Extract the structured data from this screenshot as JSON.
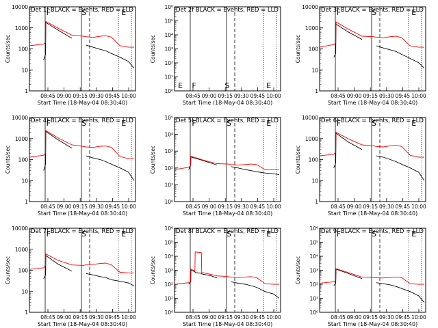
{
  "figure": {
    "ylabel": "Counts/sec",
    "xlabel": "Start Time (18-May-04 08:30:40)",
    "x_ticks": [
      "08:45",
      "09:00",
      "09:15",
      "09:30",
      "09:45",
      "10:00"
    ],
    "markers": {
      "S": "S",
      "E": "E",
      "F": "F"
    },
    "event_color": "#000000",
    "lld_color": "#ff0000"
  },
  "chart_data": [
    {
      "type": "line",
      "title": "Det 1f BLACK = Events, RED = LLD",
      "xlim": [
        "08:30:40",
        "10:10"
      ],
      "y_scale": "log",
      "ylim": [
        1,
        10000
      ],
      "y_ticks": [
        "1",
        "10",
        "100",
        "1000",
        "10000"
      ],
      "x": [
        0.0,
        0.5,
        0.57,
        0.58,
        1.0,
        1.5,
        1.9,
        2.0,
        2.25,
        2.5,
        2.7,
        2.9,
        3.2,
        3.5,
        3.7
      ],
      "series": [
        {
          "name": "Events",
          "values": [
            null,
            30,
            55,
            1800,
            800,
            320,
            null,
            150,
            120,
            95,
            80,
            60,
            40,
            25,
            12
          ]
        },
        {
          "name": "LLD",
          "values": [
            140,
            170,
            200,
            2000,
            1000,
            450,
            400,
            380,
            350,
            400,
            420,
            360,
            140,
            120,
            120
          ]
        }
      ],
      "letters": [
        {
          "text": "F",
          "x": 0.58
        },
        {
          "text": "S",
          "x": 1.85
        },
        {
          "text": "E",
          "x": 3.28
        }
      ]
    },
    {
      "type": "line",
      "title": "Det 2f BLACK = Events, RED = LLD",
      "xlim": [
        "08:30:40",
        "10:10"
      ],
      "y_scale": "log",
      "ylim": [
        1,
        1000000
      ],
      "y_ticks": [
        "10⁰",
        "10¹",
        "10²",
        "10³",
        "10⁴",
        "10⁵",
        "10⁶"
      ],
      "x": [],
      "series": [],
      "letters": [
        {
          "text": "E",
          "x": 0.1
        },
        {
          "text": "F",
          "x": 0.6
        },
        {
          "text": "S",
          "x": 1.78
        },
        {
          "text": "E",
          "x": 3.28
        }
      ]
    },
    {
      "type": "line",
      "title": "Det 3f BLACK = Events, RED = LLD",
      "xlim": [
        "08:30:40",
        "10:10"
      ],
      "y_scale": "log",
      "ylim": [
        1,
        10000
      ],
      "y_ticks": [
        "1",
        "10",
        "100",
        "1000",
        "10000"
      ],
      "x": [
        0.0,
        0.5,
        0.57,
        0.58,
        1.0,
        1.5,
        1.9,
        2.0,
        2.25,
        2.5,
        2.7,
        2.9,
        3.2,
        3.5,
        3.7
      ],
      "series": [
        {
          "name": "Events",
          "values": [
            null,
            40,
            60,
            1500,
            650,
            280,
            null,
            140,
            110,
            90,
            75,
            55,
            35,
            22,
            12
          ]
        },
        {
          "name": "LLD",
          "values": [
            120,
            160,
            190,
            1900,
            900,
            400,
            380,
            360,
            340,
            380,
            400,
            340,
            140,
            120,
            120
          ]
        }
      ],
      "letters": [
        {
          "text": "F",
          "x": 0.58
        },
        {
          "text": "S",
          "x": 1.85
        },
        {
          "text": "E",
          "x": 3.28
        }
      ]
    },
    {
      "type": "line",
      "title": "Det 4f BLACK = Events, RED = LLD",
      "xlim": [
        "08:30:40",
        "10:10"
      ],
      "y_scale": "log",
      "ylim": [
        1,
        10000
      ],
      "y_ticks": [
        "1",
        "10",
        "100",
        "1000",
        "10000"
      ],
      "x": [
        0.0,
        0.5,
        0.57,
        0.58,
        1.0,
        1.5,
        1.9,
        2.0,
        2.25,
        2.5,
        2.7,
        2.9,
        3.2,
        3.5,
        3.7
      ],
      "series": [
        {
          "name": "Events",
          "values": [
            null,
            30,
            60,
            2200,
            900,
            350,
            null,
            150,
            120,
            100,
            80,
            60,
            40,
            25,
            10
          ]
        },
        {
          "name": "LLD",
          "values": [
            130,
            160,
            200,
            2400,
            1100,
            500,
            420,
            400,
            380,
            430,
            440,
            380,
            140,
            110,
            110
          ]
        }
      ],
      "letters": [
        {
          "text": "F",
          "x": 0.58
        },
        {
          "text": "S",
          "x": 1.85
        },
        {
          "text": "E",
          "x": 3.28
        }
      ]
    },
    {
      "type": "line",
      "title": "Det 5f BLACK = Events, RED = LLD",
      "xlim": [
        "08:30:40",
        "10:10"
      ],
      "y_scale": "log",
      "ylim": [
        1,
        100000
      ],
      "y_ticks": [
        "10⁰",
        "10¹",
        "10²",
        "10³",
        "10⁴",
        "10⁵"
      ],
      "x": [
        0.0,
        0.5,
        0.57,
        0.58,
        1.0,
        1.5,
        1.9,
        2.0,
        2.25,
        2.5,
        2.7,
        2.9,
        3.2,
        3.5,
        3.7
      ],
      "series": [
        {
          "name": "Events",
          "values": [
            null,
            80,
            150,
            450,
            280,
            150,
            null,
            120,
            100,
            80,
            70,
            60,
            50,
            45,
            40
          ]
        },
        {
          "name": "LLD",
          "values": [
            80,
            110,
            140,
            500,
            300,
            180,
            170,
            160,
            150,
            160,
            170,
            160,
            80,
            80,
            80
          ]
        }
      ],
      "letters": [
        {
          "text": "F",
          "x": 0.6
        },
        {
          "text": "S",
          "x": 1.85
        },
        {
          "text": "E",
          "x": 3.28
        }
      ]
    },
    {
      "type": "line",
      "title": "Det 6f BLACK = Events, RED = LLD",
      "xlim": [
        "08:30:40",
        "10:10"
      ],
      "y_scale": "log",
      "ylim": [
        1,
        10000
      ],
      "y_ticks": [
        "1",
        "10",
        "100",
        "1000",
        "10000"
      ],
      "x": [
        0.0,
        0.5,
        0.57,
        0.58,
        1.0,
        1.5,
        1.9,
        2.0,
        2.25,
        2.5,
        2.7,
        2.9,
        3.2,
        3.5,
        3.7
      ],
      "series": [
        {
          "name": "Events",
          "values": [
            null,
            40,
            70,
            1800,
            700,
            300,
            null,
            150,
            130,
            100,
            80,
            60,
            40,
            25,
            10
          ]
        },
        {
          "name": "LLD",
          "values": [
            150,
            180,
            220,
            2000,
            1000,
            500,
            450,
            420,
            400,
            450,
            480,
            420,
            160,
            130,
            130
          ]
        }
      ],
      "letters": [
        {
          "text": "F",
          "x": 0.58
        },
        {
          "text": "S",
          "x": 1.85
        },
        {
          "text": "E",
          "x": 3.28
        }
      ]
    },
    {
      "type": "line",
      "title": "Det 7f BLACK = Events, RED = LLD",
      "xlim": [
        "08:30:40",
        "10:10"
      ],
      "y_scale": "log",
      "ylim": [
        1,
        10000
      ],
      "y_ticks": [
        "1",
        "10",
        "100",
        "1000",
        "10000"
      ],
      "x": [
        0.0,
        0.5,
        0.57,
        0.58,
        1.0,
        1.5,
        1.9,
        2.0,
        2.25,
        2.5,
        2.7,
        2.9,
        3.2,
        3.5,
        3.7
      ],
      "series": [
        {
          "name": "Events",
          "values": [
            null,
            40,
            60,
            500,
            200,
            90,
            null,
            70,
            60,
            50,
            45,
            35,
            30,
            25,
            18
          ]
        },
        {
          "name": "LLD",
          "values": [
            110,
            130,
            170,
            600,
            300,
            180,
            170,
            180,
            190,
            210,
            220,
            180,
            80,
            75,
            75
          ]
        }
      ],
      "letters": [
        {
          "text": "F",
          "x": 0.58
        },
        {
          "text": "S",
          "x": 1.85
        },
        {
          "text": "E",
          "x": 3.28
        }
      ]
    },
    {
      "type": "line",
      "title": "Det 8f BLACK = Events, RED = LLD",
      "xlim": [
        "08:30:40",
        "10:10"
      ],
      "y_scale": "log",
      "ylim": [
        1,
        1000000
      ],
      "y_ticks": [
        "10⁰",
        "10¹",
        "10²",
        "10³",
        "10⁴",
        "10⁵",
        "10⁶"
      ],
      "x": [
        0.0,
        0.5,
        0.57,
        0.58,
        0.72,
        0.73,
        0.95,
        0.96,
        1.3,
        1.5,
        1.9,
        2.0,
        2.25,
        2.5,
        2.7,
        2.9,
        3.2,
        3.5,
        3.7
      ],
      "series": [
        {
          "name": "Events",
          "values": [
            null,
            100,
            150,
            1000,
            800,
            700,
            600,
            550,
            400,
            280,
            null,
            150,
            120,
            100,
            80,
            60,
            30,
            20,
            10
          ]
        },
        {
          "name": "LLD",
          "values": [
            100,
            130,
            170,
            1200,
            900,
            20000,
            18000,
            700,
            500,
            400,
            350,
            320,
            300,
            330,
            350,
            300,
            110,
            100,
            100
          ]
        }
      ],
      "letters": [
        {
          "text": "S",
          "x": 1.85
        },
        {
          "text": "E",
          "x": 3.28
        }
      ]
    },
    {
      "type": "line",
      "title": "Det 9f BLACK = Events, RED = LLD",
      "xlim": [
        "08:30:40",
        "10:10"
      ],
      "y_scale": "log",
      "ylim": [
        1,
        1000000
      ],
      "y_ticks": [
        "10⁰",
        "10¹",
        "10²",
        "10³",
        "10⁴",
        "10⁵",
        "10⁶"
      ],
      "x": [
        0.0,
        0.5,
        0.57,
        0.58,
        1.0,
        1.5,
        1.9,
        2.0,
        2.25,
        2.5,
        2.7,
        2.9,
        3.2,
        3.5,
        3.7
      ],
      "series": [
        {
          "name": "Events",
          "values": [
            null,
            80,
            120,
            1200,
            600,
            250,
            null,
            130,
            110,
            90,
            70,
            50,
            30,
            15,
            5
          ]
        },
        {
          "name": "LLD",
          "values": [
            120,
            150,
            190,
            1300,
            700,
            320,
            300,
            290,
            280,
            310,
            330,
            300,
            110,
            100,
            100
          ]
        }
      ],
      "letters": [
        {
          "text": "F",
          "x": 0.58
        },
        {
          "text": "S",
          "x": 1.85
        },
        {
          "text": "E",
          "x": 3.28
        }
      ]
    }
  ]
}
